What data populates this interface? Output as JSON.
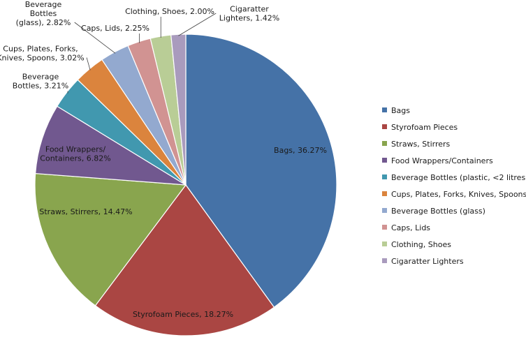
{
  "chart_data": {
    "type": "pie",
    "title": "",
    "series": [
      {
        "category": "Bags",
        "value": 36.27,
        "label": [
          "Bags, 36.27%"
        ],
        "color": "#4572A7"
      },
      {
        "category": "Styrofoam Pieces",
        "value": 18.27,
        "label": [
          "Styrofoam Pieces, 18.27%"
        ],
        "color": "#AA4643"
      },
      {
        "category": "Straws, Stirrers",
        "value": 14.47,
        "label": [
          "Straws, Stirrers, 14.47%"
        ],
        "color": "#89A54E"
      },
      {
        "category": "Food Wrappers/Containers",
        "value": 6.82,
        "label": [
          "Food Wrappers/",
          "Containers, 6.82%"
        ],
        "color": "#71588F"
      },
      {
        "category": "Beverage Bottles (plastic, <2 litres)",
        "value": 3.21,
        "label": [
          "Beverage",
          "Bottles, 3.21%"
        ],
        "color": "#4198AF"
      },
      {
        "category": "Cups, Plates, Forks, Knives, Spoons",
        "value": 3.02,
        "label": [
          "Cups, Plates, Forks,",
          "Knives, Spoons, 3.02%"
        ],
        "color": "#DB843D"
      },
      {
        "category": "Beverage Bottles (glass)",
        "value": 2.82,
        "label": [
          "Beverage",
          "Bottles",
          "(glass), 2.82%"
        ],
        "color": "#93A9CF"
      },
      {
        "category": "Caps, Lids",
        "value": 2.25,
        "label": [
          "Caps, Lids, 2.25%"
        ],
        "color": "#D19392"
      },
      {
        "category": "Clothing, Shoes",
        "value": 2.0,
        "label": [
          "Clothing, Shoes, 2.00%"
        ],
        "color": "#B9CD96"
      },
      {
        "category": "Cigaratter Lighters",
        "value": 1.42,
        "label": [
          "Cigaratter",
          "Lighters, 1.42%"
        ],
        "color": "#A99BBD"
      }
    ],
    "legend": {
      "placement": "right"
    }
  }
}
